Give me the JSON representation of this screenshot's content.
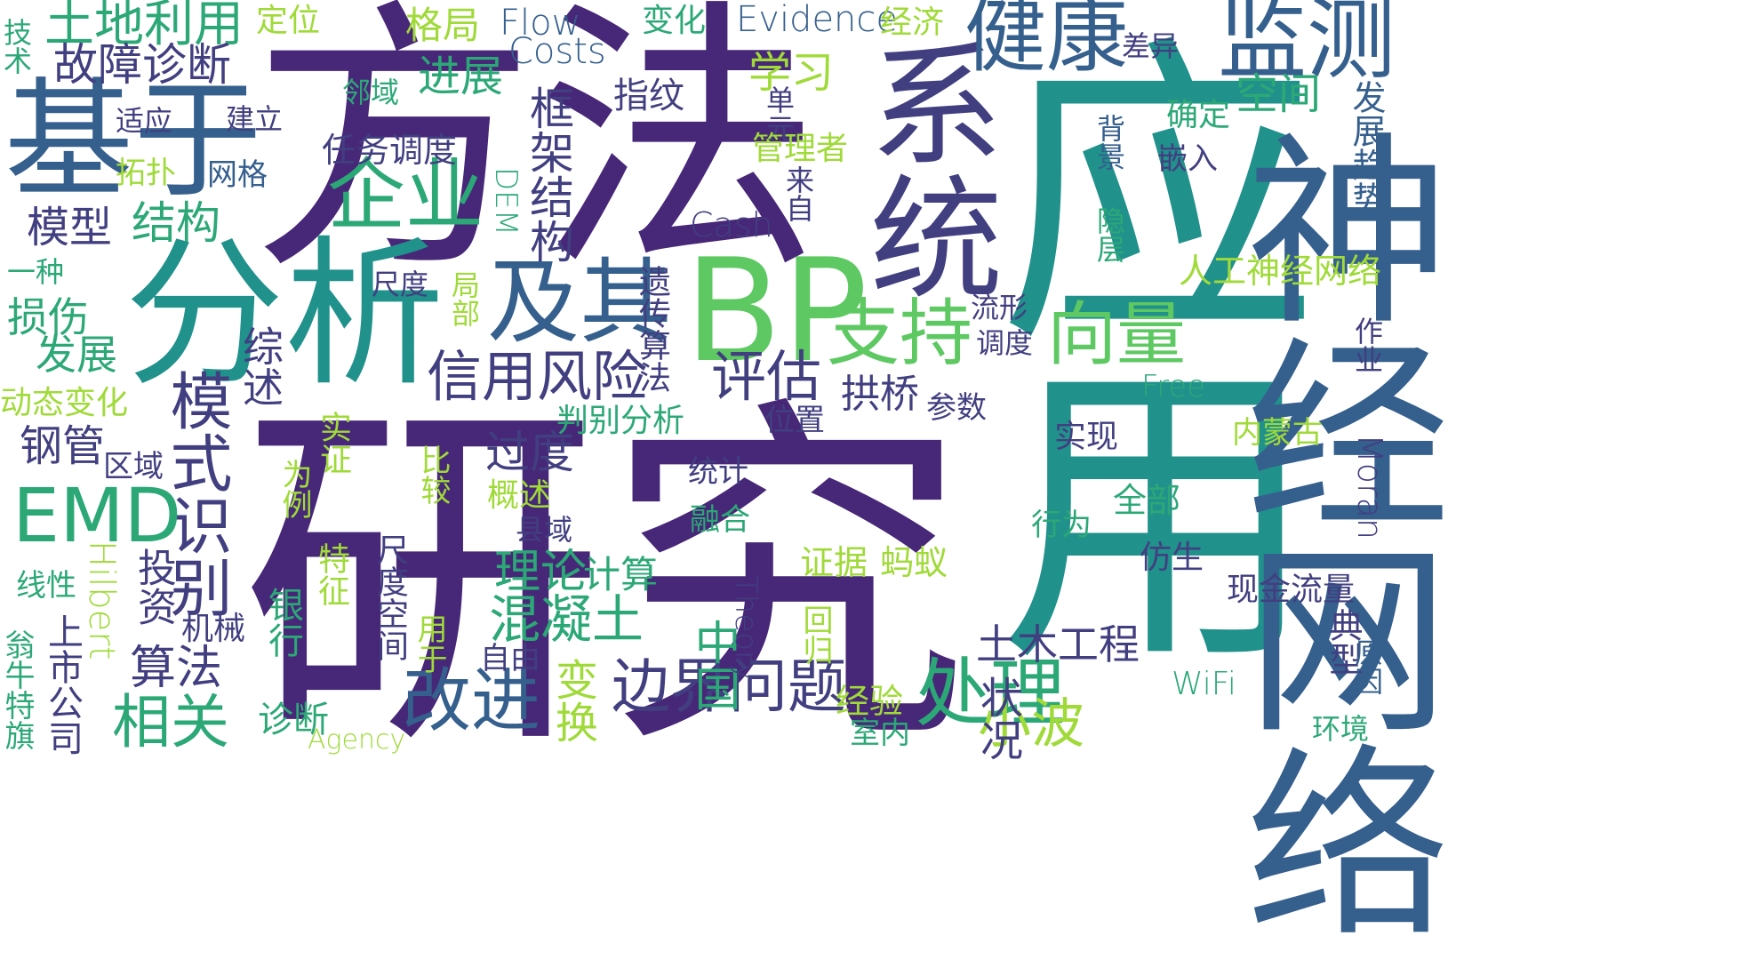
{
  "palette": {
    "purple": "#472777",
    "indigo": "#413f80",
    "blue": "#355f8d",
    "teal": "#21918c",
    "green": "#2ca877",
    "lime": "#5ec962",
    "yellowgreen": "#a0da39",
    "yellow": "#c8e020"
  },
  "words": [
    {
      "t": "方法",
      "c": "#472777"
    },
    {
      "t": "研究",
      "c": "#472777"
    },
    {
      "t": "应用",
      "c": "#21918c"
    },
    {
      "t": "神经网络",
      "c": "#355f8d"
    },
    {
      "t": "系统",
      "c": "#413f80"
    },
    {
      "t": "基于",
      "c": "#355f8d"
    },
    {
      "t": "分析",
      "c": "#21918c"
    },
    {
      "t": "BP",
      "c": "#5ec962"
    },
    {
      "t": "监测",
      "c": "#355f8d"
    },
    {
      "t": "健康",
      "c": "#355f8d"
    },
    {
      "t": "及其",
      "c": "#355f8d"
    },
    {
      "t": "模式识别",
      "c": "#413f80"
    },
    {
      "t": "EMD",
      "c": "#2ca877"
    },
    {
      "t": "企业",
      "c": "#2ca877"
    },
    {
      "t": "支持",
      "c": "#5ec962"
    },
    {
      "t": "向量",
      "c": "#5ec962"
    },
    {
      "t": "处理",
      "c": "#2ca877"
    },
    {
      "t": "改进",
      "c": "#355f8d"
    },
    {
      "t": "信用风险",
      "c": "#413f80"
    },
    {
      "t": "评估",
      "c": "#413f80"
    },
    {
      "t": "边界问题",
      "c": "#413f80"
    },
    {
      "t": "小波",
      "c": "#a0da39"
    },
    {
      "t": "土地利用",
      "c": "#2ca877"
    },
    {
      "t": "故障诊断",
      "c": "#413f80"
    },
    {
      "t": "进展",
      "c": "#2ca877"
    },
    {
      "t": "学习",
      "c": "#a0da39"
    },
    {
      "t": "定位",
      "c": "#a0da39"
    },
    {
      "t": "格局",
      "c": "#a0da39"
    },
    {
      "t": "Flow",
      "c": "#355f8d"
    },
    {
      "t": "Costs",
      "c": "#355f8d"
    },
    {
      "t": "变化",
      "c": "#2ca877"
    },
    {
      "t": "Evidence",
      "c": "#355f8d"
    },
    {
      "t": "经济",
      "c": "#a0da39"
    },
    {
      "t": "差异",
      "c": "#413f80"
    },
    {
      "t": "空间",
      "c": "#2ca877"
    },
    {
      "t": "确定",
      "c": "#2ca877"
    },
    {
      "t": "发展趋势",
      "c": "#355f8d"
    },
    {
      "t": "技术",
      "c": "#2ca877"
    },
    {
      "t": "适应",
      "c": "#413f80"
    },
    {
      "t": "建立",
      "c": "#413f80"
    },
    {
      "t": "邻域",
      "c": "#2ca877"
    },
    {
      "t": "指纹",
      "c": "#413f80"
    },
    {
      "t": "单元",
      "c": "#413f80"
    },
    {
      "t": "背景",
      "c": "#355f8d"
    },
    {
      "t": "嵌入",
      "c": "#413f80"
    },
    {
      "t": "拓扑",
      "c": "#a0da39"
    },
    {
      "t": "网格",
      "c": "#355f8d"
    },
    {
      "t": "任务调度",
      "c": "#413f80"
    },
    {
      "t": "框架结构",
      "c": "#413f80"
    },
    {
      "t": "管理者",
      "c": "#a0da39"
    },
    {
      "t": "来自",
      "c": "#413f80"
    },
    {
      "t": "隐层",
      "c": "#2ca877"
    },
    {
      "t": "DEM",
      "c": "#2ca877"
    },
    {
      "t": "Cash",
      "c": "#413f80"
    },
    {
      "t": "模型",
      "c": "#413f80"
    },
    {
      "t": "结构",
      "c": "#2ca877"
    },
    {
      "t": "一种",
      "c": "#2ca877"
    },
    {
      "t": "尺度",
      "c": "#413f80"
    },
    {
      "t": "局部",
      "c": "#a0da39"
    },
    {
      "t": "遗传算法",
      "c": "#413f80"
    },
    {
      "t": "人工神经网络",
      "c": "#a0da39"
    },
    {
      "t": "损伤",
      "c": "#2ca877"
    },
    {
      "t": "发展",
      "c": "#2ca877"
    },
    {
      "t": "综述",
      "c": "#413f80"
    },
    {
      "t": "流形",
      "c": "#413f80"
    },
    {
      "t": "调度",
      "c": "#413f80"
    },
    {
      "t": "作业",
      "c": "#413f80"
    },
    {
      "t": "拱桥",
      "c": "#413f80"
    },
    {
      "t": "Free",
      "c": "#2ca877"
    },
    {
      "t": "动态变化",
      "c": "#a0da39"
    },
    {
      "t": "参数",
      "c": "#413f80"
    },
    {
      "t": "判别分析",
      "c": "#2ca877"
    },
    {
      "t": "位置",
      "c": "#413f80"
    },
    {
      "t": "实现",
      "c": "#413f80"
    },
    {
      "t": "内蒙古",
      "c": "#a0da39"
    },
    {
      "t": "钢管",
      "c": "#413f80"
    },
    {
      "t": "区域",
      "c": "#413f80"
    },
    {
      "t": "实证",
      "c": "#a0da39"
    },
    {
      "t": "过度",
      "c": "#413f80"
    },
    {
      "t": "比较",
      "c": "#a0da39"
    },
    {
      "t": "为例",
      "c": "#a0da39"
    },
    {
      "t": "统计",
      "c": "#413f80"
    },
    {
      "t": "Moran",
      "c": "#413f80"
    },
    {
      "t": "概述",
      "c": "#a0da39"
    },
    {
      "t": "融合",
      "c": "#2ca877"
    },
    {
      "t": "全部",
      "c": "#2ca877"
    },
    {
      "t": "行为",
      "c": "#2ca877"
    },
    {
      "t": "县域",
      "c": "#413f80"
    },
    {
      "t": "仿生",
      "c": "#413f80"
    },
    {
      "t": "Hilbert",
      "c": "#a0da39"
    },
    {
      "t": "投资",
      "c": "#413f80"
    },
    {
      "t": "理论",
      "c": "#2ca877"
    },
    {
      "t": "计算",
      "c": "#2ca877"
    },
    {
      "t": "证据",
      "c": "#a0da39"
    },
    {
      "t": "蚂蚁",
      "c": "#a0da39"
    },
    {
      "t": "现金流量",
      "c": "#413f80"
    },
    {
      "t": "线性",
      "c": "#2ca877"
    },
    {
      "t": "特征",
      "c": "#a0da39"
    },
    {
      "t": "混凝土",
      "c": "#2ca877"
    },
    {
      "t": "中国",
      "c": "#2ca877"
    },
    {
      "t": "Theory",
      "c": "#413f80"
    },
    {
      "t": "典型",
      "c": "#413f80"
    },
    {
      "t": "上市公司",
      "c": "#413f80"
    },
    {
      "t": "机械",
      "c": "#413f80"
    },
    {
      "t": "银行",
      "c": "#2ca877"
    },
    {
      "t": "尺度空间",
      "c": "#413f80"
    },
    {
      "t": "回归",
      "c": "#a0da39"
    },
    {
      "t": "原因",
      "c": "#355f8d"
    },
    {
      "t": "算法",
      "c": "#413f80"
    },
    {
      "t": "用于",
      "c": "#a0da39"
    },
    {
      "t": "自由",
      "c": "#413f80"
    },
    {
      "t": "土木工程",
      "c": "#413f80"
    },
    {
      "t": "WiFi",
      "c": "#2ca877"
    },
    {
      "t": "翁牛特旗",
      "c": "#2ca877"
    },
    {
      "t": "相关",
      "c": "#2ca877"
    },
    {
      "t": "诊断",
      "c": "#2ca877"
    },
    {
      "t": "变换",
      "c": "#a0da39"
    },
    {
      "t": "状况",
      "c": "#413f80"
    },
    {
      "t": "经验",
      "c": "#a0da39"
    },
    {
      "t": "室内",
      "c": "#2ca877"
    },
    {
      "t": "环境",
      "c": "#2ca877"
    },
    {
      "t": "Agency",
      "c": "#a0da39"
    }
  ]
}
